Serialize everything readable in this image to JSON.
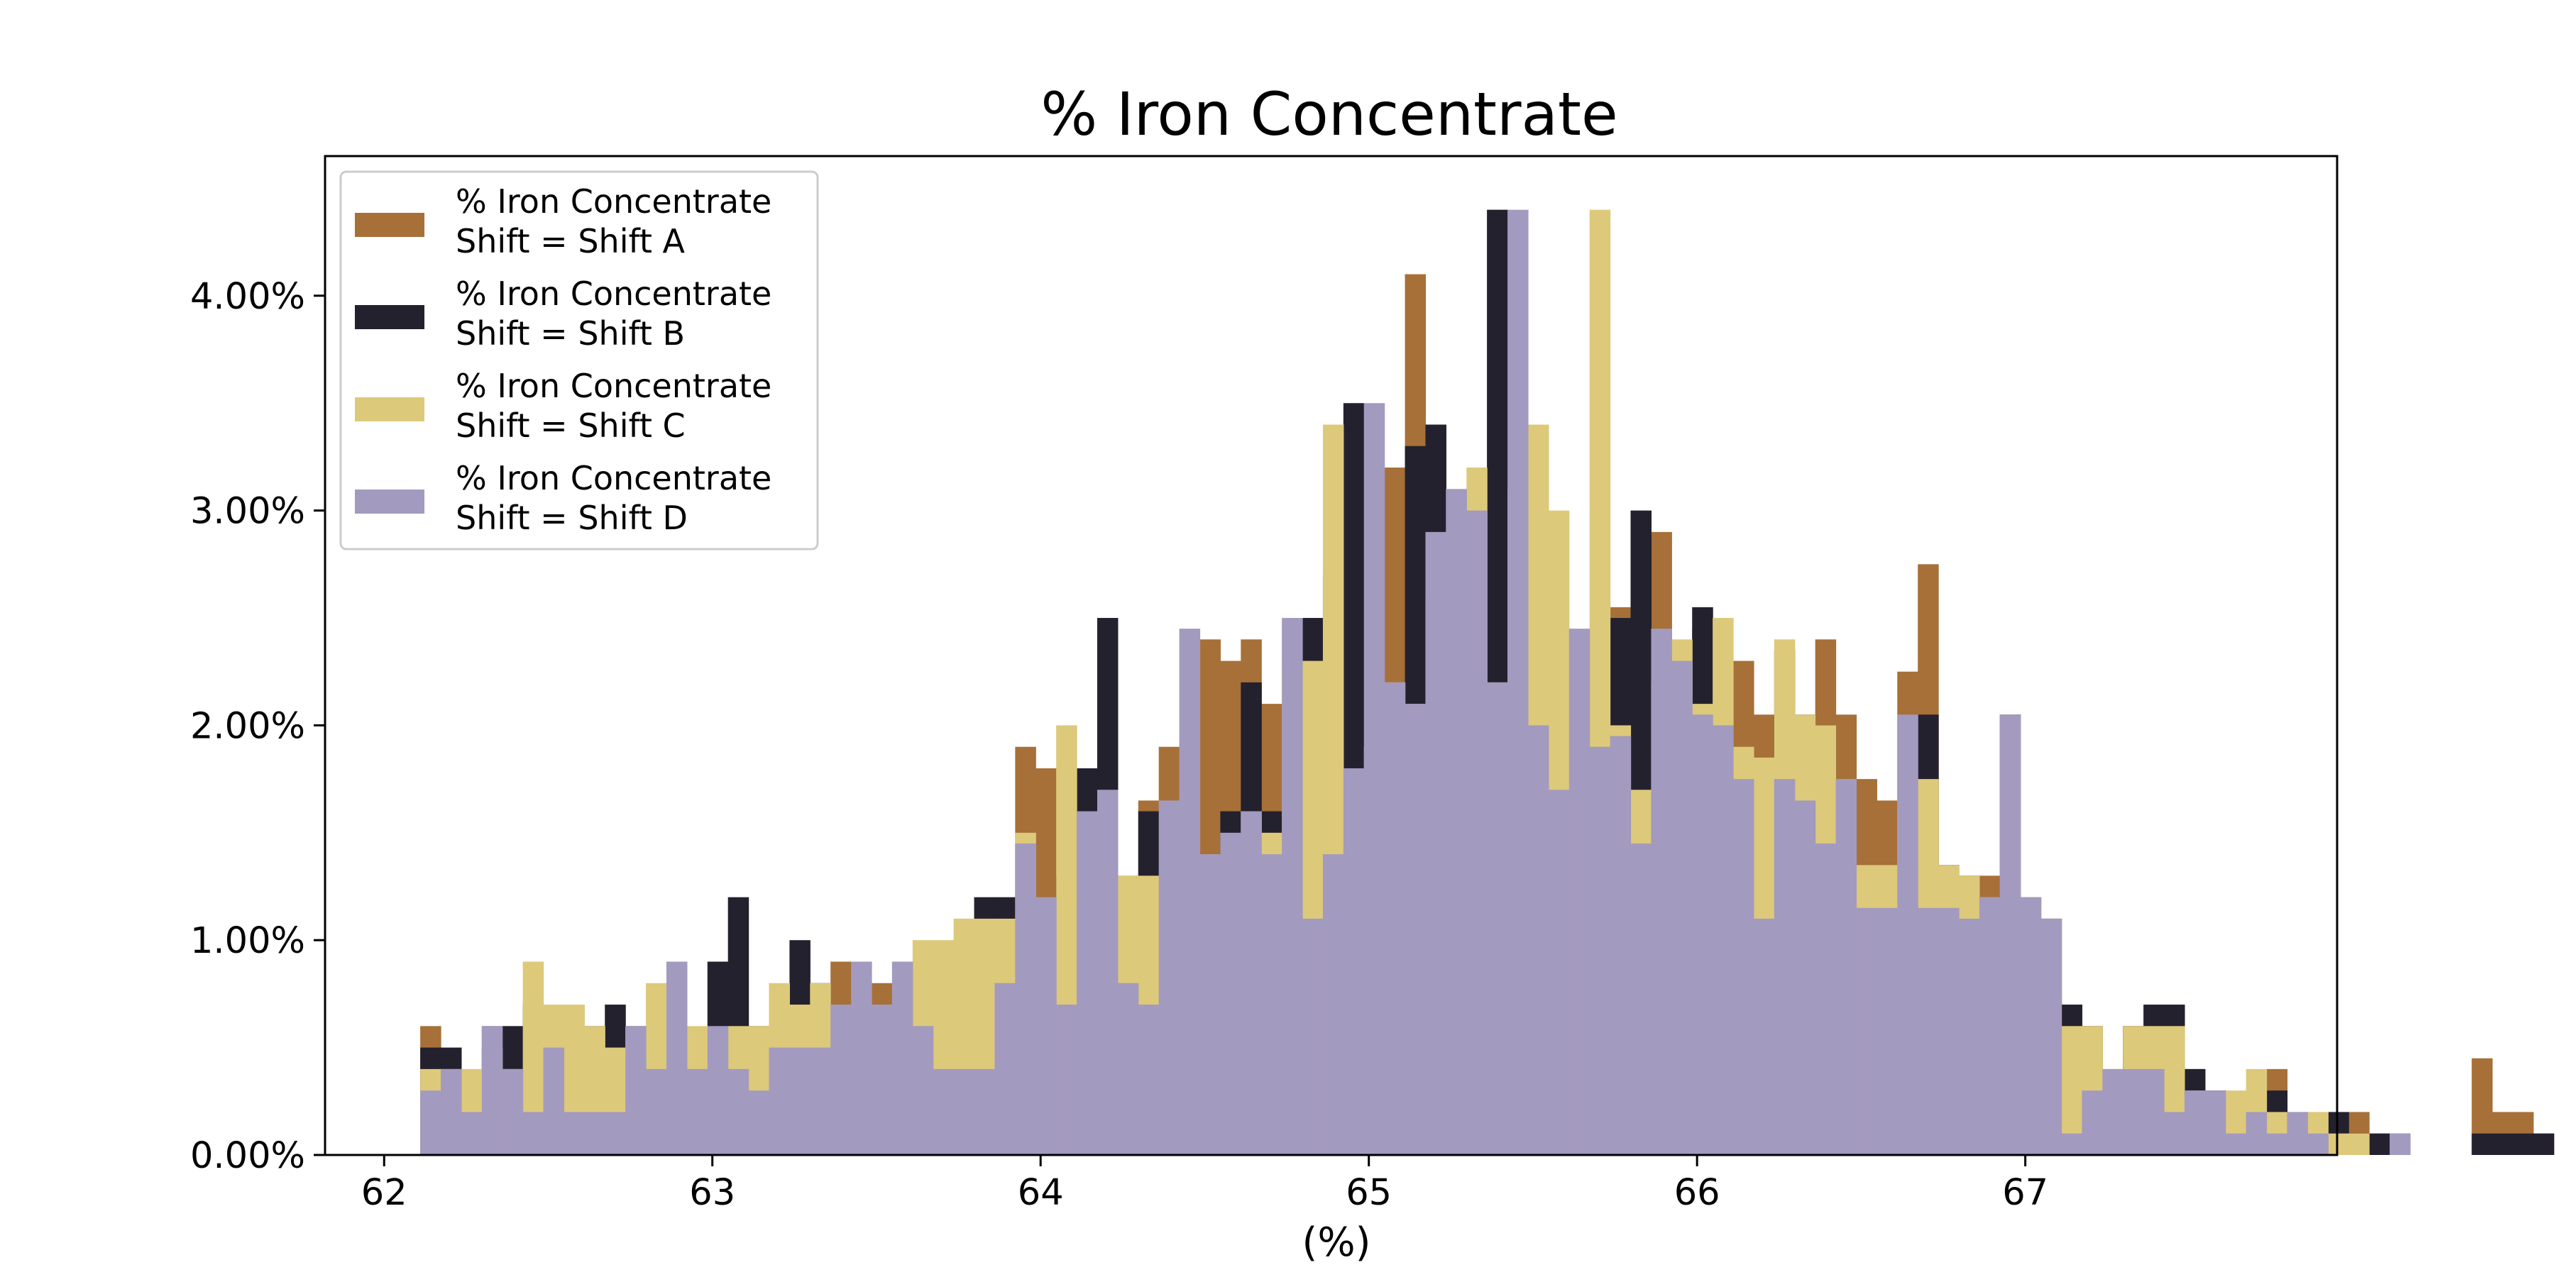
{
  "chart_data": {
    "type": "bar",
    "subtype": "histogram (overlaid)",
    "title": "% Iron Concentrate",
    "xlabel": "(%)",
    "ylabel": "",
    "xlim": [
      61.82,
      67.95
    ],
    "ylim": [
      0,
      0.0465
    ],
    "x_ticks": [
      62,
      63,
      64,
      65,
      66,
      67
    ],
    "x_tick_labels": [
      "62",
      "63",
      "64",
      "65",
      "66",
      "67"
    ],
    "y_ticks": [
      0,
      0.01,
      0.02,
      0.03,
      0.04
    ],
    "y_tick_labels": [
      "0.00%",
      "1.00%",
      "2.00%",
      "3.00%",
      "4.00%"
    ],
    "grid": false,
    "legend_position": "upper-left",
    "bin_start": 62.11,
    "bin_width": 0.0625,
    "series": [
      {
        "name": "% Iron Concentrate\nShift = Shift A",
        "legend_lines": [
          "% Iron Concentrate",
          "Shift = Shift A"
        ],
        "color": "#a67038",
        "values": [
          0.006,
          0.004,
          0.002,
          0.006,
          0.005,
          0.002,
          0.006,
          0.004,
          0.002,
          0.006,
          0.002,
          0.005,
          0.006,
          0.004,
          0.002,
          0.004,
          0.002,
          0.005,
          0.005,
          0.006,
          0.009,
          0.007,
          0.008,
          0.009,
          0.008,
          0.004,
          0.004,
          0.011,
          0.008,
          0.019,
          0.018,
          0.006,
          0.017,
          0.013,
          0.013,
          0.0165,
          0.019,
          0.018,
          0.024,
          0.023,
          0.024,
          0.021,
          0.021,
          0.019,
          0.0225,
          0.0255,
          0.031,
          0.032,
          0.041,
          0.034,
          0.03,
          0.0225,
          0.044,
          0.0255,
          0.0225,
          0.02,
          0.024,
          0.021,
          0.0255,
          0.02,
          0.029,
          0.022,
          0.0245,
          0.0215,
          0.023,
          0.0205,
          0.02,
          0.0185,
          0.024,
          0.0205,
          0.0175,
          0.0165,
          0.0225,
          0.0275,
          0.012,
          0.013,
          0.013,
          0.0205,
          0.012,
          0.011,
          0.007,
          0.006,
          0.002,
          0.006,
          0.006,
          0.004,
          0.004,
          0.002,
          0.002,
          0.003,
          0.004,
          0.002,
          0.001,
          0.001,
          0.002,
          0.001,
          0.001,
          0,
          0,
          0,
          0.0045,
          0.002,
          0.002,
          0.001
        ]
      },
      {
        "name": "% Iron Concentrate\nShift = Shift B",
        "legend_lines": [
          "% Iron Concentrate",
          "Shift = Shift B"
        ],
        "color": "#24212f",
        "values": [
          0.005,
          0.005,
          0.002,
          0.005,
          0.006,
          0.007,
          0.004,
          0.002,
          0.006,
          0.007,
          0.006,
          0.006,
          0.004,
          0.004,
          0.009,
          0.012,
          0.006,
          0.006,
          0.01,
          0.008,
          0.005,
          0.005,
          0.005,
          0.006,
          0.009,
          0.008,
          0.009,
          0.012,
          0.012,
          0.007,
          0.008,
          0.013,
          0.018,
          0.025,
          0.011,
          0.016,
          0.014,
          0.014,
          0.01,
          0.016,
          0.022,
          0.016,
          0.016,
          0.025,
          0.027,
          0.035,
          0.022,
          0.021,
          0.033,
          0.034,
          0.03,
          0.022,
          0.044,
          0.02,
          0.02,
          0.017,
          0.024,
          0.021,
          0.025,
          0.03,
          0.024,
          0.023,
          0.0255,
          0.02,
          0.0175,
          0.0115,
          0.0235,
          0.0205,
          0.02,
          0.0175,
          0.0135,
          0.0135,
          0.0135,
          0.0205,
          0.0135,
          0.013,
          0.012,
          0.0205,
          0.011,
          0.011,
          0.007,
          0.006,
          0.002,
          0.006,
          0.007,
          0.007,
          0.004,
          0.003,
          0.0025,
          0.003,
          0.003,
          0.001,
          0.001,
          0.002,
          0.001,
          0.001,
          0,
          0,
          0,
          0,
          0.001,
          0.001,
          0.001,
          0.001
        ]
      },
      {
        "name": "% Iron Concentrate\nShift = Shift C",
        "legend_lines": [
          "% Iron Concentrate",
          "Shift = Shift C"
        ],
        "color": "#ddc97a",
        "values": [
          0.004,
          0.004,
          0.004,
          0.005,
          0.004,
          0.009,
          0.007,
          0.007,
          0.006,
          0.005,
          0.006,
          0.008,
          0.006,
          0.006,
          0.003,
          0.006,
          0.006,
          0.008,
          0.007,
          0.008,
          0.006,
          0.007,
          0.007,
          0.008,
          0.01,
          0.01,
          0.011,
          0.011,
          0.011,
          0.015,
          0.007,
          0.02,
          0.011,
          0.01,
          0.013,
          0.013,
          0.01,
          0.01,
          0.014,
          0.013,
          0.016,
          0.015,
          0.023,
          0.023,
          0.034,
          0.014,
          0.019,
          0.022,
          0.021,
          0.026,
          0.031,
          0.032,
          0.022,
          0.031,
          0.034,
          0.03,
          0.022,
          0.044,
          0.02,
          0.017,
          0.022,
          0.024,
          0.021,
          0.025,
          0.019,
          0.0185,
          0.024,
          0.0205,
          0.02,
          0.0175,
          0.0135,
          0.0135,
          0.0165,
          0.0175,
          0.0135,
          0.013,
          0.012,
          0.0205,
          0.012,
          0.011,
          0.006,
          0.006,
          0.004,
          0.006,
          0.006,
          0.006,
          0.003,
          0.002,
          0.003,
          0.004,
          0.002,
          0.001,
          0.002,
          0.001,
          0.001,
          0,
          0,
          0,
          0,
          0,
          0,
          0,
          0,
          0
        ]
      },
      {
        "name": "% Iron Concentrate\nShift = Shift D",
        "legend_lines": [
          "% Iron Concentrate",
          "Shift = Shift D"
        ],
        "color": "#a39abf",
        "values": [
          0.003,
          0.004,
          0.002,
          0.006,
          0.004,
          0.002,
          0.005,
          0.002,
          0.002,
          0.002,
          0.006,
          0.004,
          0.009,
          0.004,
          0.006,
          0.004,
          0.003,
          0.005,
          0.005,
          0.005,
          0.007,
          0.009,
          0.007,
          0.009,
          0.006,
          0.004,
          0.004,
          0.004,
          0.008,
          0.0145,
          0.012,
          0.007,
          0.016,
          0.017,
          0.008,
          0.007,
          0.0165,
          0.0245,
          0.014,
          0.015,
          0.016,
          0.014,
          0.025,
          0.011,
          0.014,
          0.018,
          0.035,
          0.022,
          0.021,
          0.029,
          0.031,
          0.03,
          0.022,
          0.044,
          0.02,
          0.017,
          0.0245,
          0.019,
          0.0195,
          0.0145,
          0.0245,
          0.023,
          0.0205,
          0.02,
          0.0175,
          0.011,
          0.0175,
          0.0165,
          0.0145,
          0.0175,
          0.0115,
          0.0115,
          0.0205,
          0.0115,
          0.0115,
          0.011,
          0.012,
          0.0205,
          0.012,
          0.011,
          0.001,
          0.003,
          0.004,
          0.004,
          0.004,
          0.002,
          0.003,
          0.003,
          0.001,
          0.002,
          0.001,
          0.002,
          0.001,
          0,
          0,
          0,
          0.001,
          0,
          0,
          0,
          0,
          0,
          0,
          0
        ]
      }
    ]
  }
}
